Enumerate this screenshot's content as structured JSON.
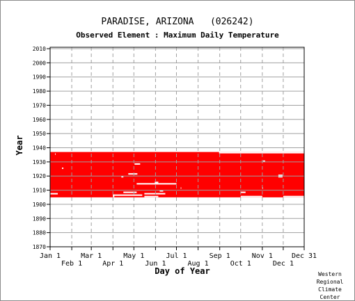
{
  "chart_data": {
    "type": "heatmap",
    "title": "PARADISE, ARIZONA   (026242)",
    "subtitle": "Observed Element : Maximum Daily Temperature",
    "xlabel": "Day of Year",
    "ylabel": "Year",
    "xlim": [
      1,
      365
    ],
    "ylim": [
      1870,
      2011
    ],
    "yticks": [
      1870,
      1880,
      1890,
      1900,
      1910,
      1920,
      1930,
      1940,
      1950,
      1960,
      1970,
      1980,
      1990,
      2000,
      2010
    ],
    "xticks_top": [
      {
        "label": "Jan 1",
        "day": 1
      },
      {
        "label": "Mar 1",
        "day": 60
      },
      {
        "label": "May 1",
        "day": 121
      },
      {
        "label": "Jul 1",
        "day": 182
      },
      {
        "label": "Sep 1",
        "day": 244
      },
      {
        "label": "Nov 1",
        "day": 305
      },
      {
        "label": "Dec 31",
        "day": 365
      }
    ],
    "xticks_bottom": [
      {
        "label": "Feb 1",
        "day": 32
      },
      {
        "label": "Apr 1",
        "day": 91
      },
      {
        "label": "Jun 1",
        "day": 152
      },
      {
        "label": "Aug 1",
        "day": 213
      },
      {
        "label": "Oct 1",
        "day": 274
      },
      {
        "label": "Dec 1",
        "day": 335
      }
    ],
    "grid": true,
    "data_color": "#ff0000",
    "coverage": [
      {
        "days": [
          1,
          365
        ],
        "years": [
          1905,
          1936
        ]
      },
      {
        "days": [
          1,
          365
        ],
        "years": [
          1905,
          1937
        ]
      }
    ],
    "gaps": [
      {
        "days": [
          1,
          12
        ],
        "years": [
          1907,
          1908
        ]
      },
      {
        "days": [
          18,
          20
        ],
        "years": [
          1925,
          1926
        ]
      },
      {
        "days": [
          8,
          9
        ],
        "years": [
          1935,
          1936
        ]
      },
      {
        "days": [
          91,
          93
        ],
        "years": [
          1905,
          1907
        ]
      },
      {
        "days": [
          103,
          106
        ],
        "years": [
          1919,
          1920
        ]
      },
      {
        "days": [
          113,
          126
        ],
        "years": [
          1921,
          1922
        ]
      },
      {
        "days": [
          122,
          130
        ],
        "years": [
          1928,
          1929
        ]
      },
      {
        "days": [
          91,
          133
        ],
        "years": [
          1906,
          1907
        ]
      },
      {
        "days": [
          106,
          125
        ],
        "years": [
          1908,
          1909
        ]
      },
      {
        "days": [
          136,
          156
        ],
        "years": [
          1905,
          1906
        ]
      },
      {
        "days": [
          136,
          166
        ],
        "years": [
          1907,
          1908
        ]
      },
      {
        "days": [
          125,
          182
        ],
        "years": [
          1914,
          1915
        ]
      },
      {
        "days": [
          151,
          156
        ],
        "years": [
          1915,
          1916
        ]
      },
      {
        "days": [
          158,
          163
        ],
        "years": [
          1909,
          1910
        ]
      },
      {
        "days": [
          188,
          189
        ],
        "years": [
          1911,
          1912
        ]
      },
      {
        "days": [
          243,
          366
        ],
        "years": [
          1936,
          1937
        ]
      },
      {
        "days": [
          274,
          305
        ],
        "years": [
          1905,
          1906
        ]
      },
      {
        "days": [
          274,
          281
        ],
        "years": [
          1908,
          1909
        ]
      },
      {
        "days": [
          305,
          306
        ],
        "years": [
          1911,
          1912
        ]
      },
      {
        "days": [
          306,
          309
        ],
        "years": [
          1930,
          1931
        ]
      },
      {
        "days": [
          328,
          334
        ],
        "years": [
          1919,
          1921
        ]
      },
      {
        "days": [
          335,
          366
        ],
        "years": [
          1905,
          1906
        ]
      }
    ]
  },
  "credit": {
    "lines": [
      "Western",
      "Regional",
      "Climate",
      "Center"
    ]
  }
}
